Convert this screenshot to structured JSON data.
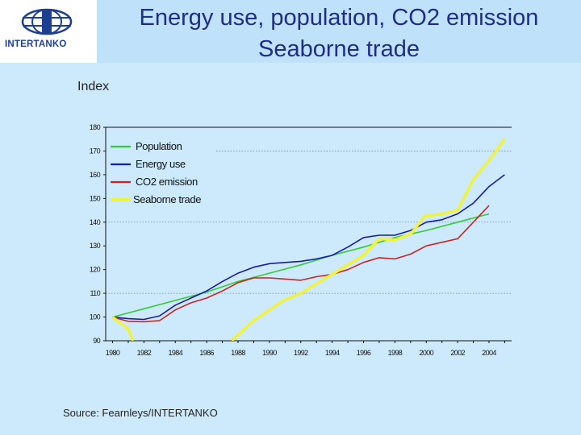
{
  "header": {
    "title_line1": "Energy use, population, CO2 emission",
    "title_line2": "Seaborne trade",
    "logo_text": "INTERTANKO"
  },
  "index_label": "Index",
  "source": "Source: Fearnleys/INTERTANKO",
  "colors": {
    "background": "#cdeafc",
    "title": "#1f2d86",
    "population": "#33cc33",
    "energy": "#1a1aaa",
    "co2": "#cc2222",
    "seaborne": "#f2f23a"
  },
  "chart_data": {
    "type": "line",
    "ylabel": "Index",
    "xlim": [
      1979.5,
      2005.5
    ],
    "ylim": [
      90,
      180
    ],
    "yticks": [
      90,
      100,
      110,
      120,
      130,
      140,
      150,
      160,
      170,
      180
    ],
    "xticks": [
      1980,
      1982,
      1984,
      1986,
      1988,
      1990,
      1992,
      1994,
      1996,
      1998,
      2000,
      2002,
      2004
    ],
    "grid": "dotted horizontal at 110, 140, 170",
    "legend": "top-left",
    "series": [
      {
        "name": "Population",
        "color": "#33cc33",
        "points": [
          [
            1980,
            100
          ],
          [
            1982,
            103.5
          ],
          [
            1984,
            107
          ],
          [
            1986,
            110.5
          ],
          [
            1988,
            115
          ],
          [
            1990,
            118.5
          ],
          [
            1992,
            122
          ],
          [
            1994,
            126
          ],
          [
            1996,
            129.5
          ],
          [
            1998,
            133.5
          ],
          [
            2000,
            136.5
          ],
          [
            2002,
            140
          ],
          [
            2004,
            143.5
          ]
        ]
      },
      {
        "name": "Energy use",
        "color": "#1a1aaa",
        "points": [
          [
            1980,
            100
          ],
          [
            1981,
            99.3
          ],
          [
            1982,
            99
          ],
          [
            1983,
            100.5
          ],
          [
            1984,
            105
          ],
          [
            1985,
            108
          ],
          [
            1986,
            111
          ],
          [
            1987,
            115
          ],
          [
            1988,
            118.5
          ],
          [
            1989,
            121
          ],
          [
            1990,
            122.5
          ],
          [
            1991,
            123
          ],
          [
            1992,
            123.5
          ],
          [
            1993,
            124.5
          ],
          [
            1994,
            126
          ],
          [
            1995,
            129.5
          ],
          [
            1996,
            133.5
          ],
          [
            1997,
            134.5
          ],
          [
            1998,
            134.5
          ],
          [
            1999,
            136.5
          ],
          [
            2000,
            140
          ],
          [
            2001,
            141
          ],
          [
            2002,
            143.5
          ],
          [
            2003,
            148
          ],
          [
            2004,
            155
          ],
          [
            2005,
            160
          ]
        ]
      },
      {
        "name": "CO2 emission",
        "color": "#cc2222",
        "points": [
          [
            1980,
            100
          ],
          [
            1981,
            98.2
          ],
          [
            1982,
            98
          ],
          [
            1983,
            98.5
          ],
          [
            1984,
            103
          ],
          [
            1985,
            106
          ],
          [
            1986,
            108
          ],
          [
            1987,
            111
          ],
          [
            1988,
            114.5
          ],
          [
            1989,
            116.5
          ],
          [
            1990,
            116.5
          ],
          [
            1991,
            116
          ],
          [
            1992,
            115.5
          ],
          [
            1993,
            117
          ],
          [
            1994,
            118
          ],
          [
            1995,
            120
          ],
          [
            1996,
            123
          ],
          [
            1997,
            125
          ],
          [
            1998,
            124.5
          ],
          [
            1999,
            126.5
          ],
          [
            2000,
            130
          ],
          [
            2001,
            131.5
          ],
          [
            2002,
            133
          ],
          [
            2003,
            140
          ],
          [
            2004,
            147
          ]
        ]
      },
      {
        "name": "Seaborne trade",
        "color": "#f2f23a",
        "points": [
          [
            1980,
            100
          ],
          [
            1981,
            95
          ],
          [
            1981.3,
            90
          ],
          null,
          [
            1987.6,
            90
          ],
          [
            1988.9,
            98
          ],
          [
            1990,
            103
          ],
          [
            1990.9,
            107
          ],
          [
            1992,
            110
          ],
          [
            1993,
            114
          ],
          [
            1994.5,
            120
          ],
          [
            1996,
            126
          ],
          [
            1997,
            133
          ],
          [
            1998,
            132.5
          ],
          [
            1999,
            135
          ],
          [
            1999.9,
            142.5
          ],
          [
            2001,
            143.5
          ],
          [
            2002,
            145
          ],
          [
            2003,
            158
          ],
          [
            2004,
            166
          ],
          [
            2005,
            175
          ]
        ]
      }
    ]
  }
}
